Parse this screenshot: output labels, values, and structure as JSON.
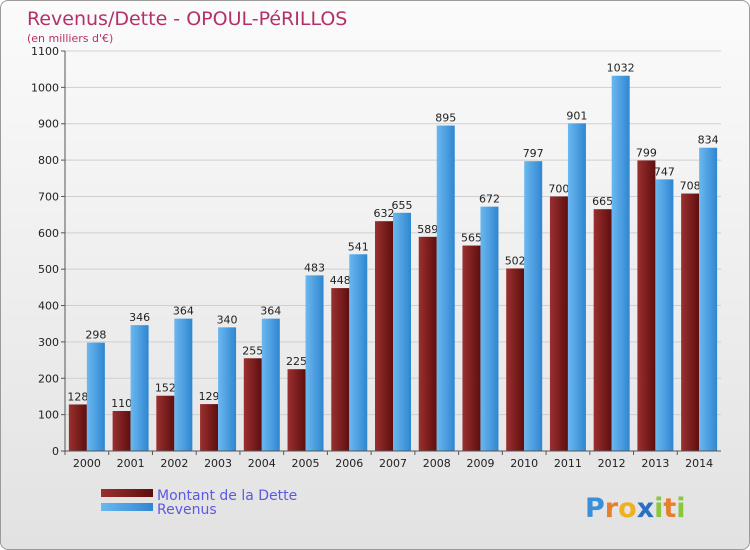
{
  "chart_data": {
    "type": "bar",
    "title": "Revenus/Dette - OPOUL-PéRILLOS",
    "subtitle": "(en milliers d'€)",
    "categories": [
      "2000",
      "2001",
      "2002",
      "2003",
      "2004",
      "2005",
      "2006",
      "2007",
      "2008",
      "2009",
      "2010",
      "2011",
      "2012",
      "2013",
      "2014"
    ],
    "series": [
      {
        "name": "Montant de la Dette",
        "color": "#7a1c1c",
        "values": [
          128,
          110,
          152,
          129,
          255,
          225,
          448,
          632,
          589,
          565,
          502,
          700,
          665,
          799,
          708
        ]
      },
      {
        "name": "Revenus",
        "color": "#4aa3e6",
        "values": [
          298,
          346,
          364,
          340,
          364,
          483,
          541,
          655,
          895,
          672,
          797,
          901,
          1032,
          747,
          834
        ]
      }
    ],
    "ylim": [
      0,
      1100
    ],
    "yticks": [
      "0",
      "100",
      "200",
      "300",
      "400",
      "500",
      "600",
      "700",
      "800",
      "900",
      "1000",
      "1100"
    ],
    "grid": true,
    "legend_position": "bottom-left"
  },
  "logo": {
    "text": "Proxiti",
    "letters": [
      {
        "ch": "P",
        "color": "#3a8fd8"
      },
      {
        "ch": "r",
        "color": "#e6802a"
      },
      {
        "ch": "o",
        "color": "#f0b020"
      },
      {
        "ch": "x",
        "color": "#2b6fc4"
      },
      {
        "ch": "i",
        "color": "#8cc63f"
      },
      {
        "ch": "t",
        "color": "#e6802a"
      },
      {
        "ch": "i",
        "color": "#8cc63f"
      }
    ]
  }
}
